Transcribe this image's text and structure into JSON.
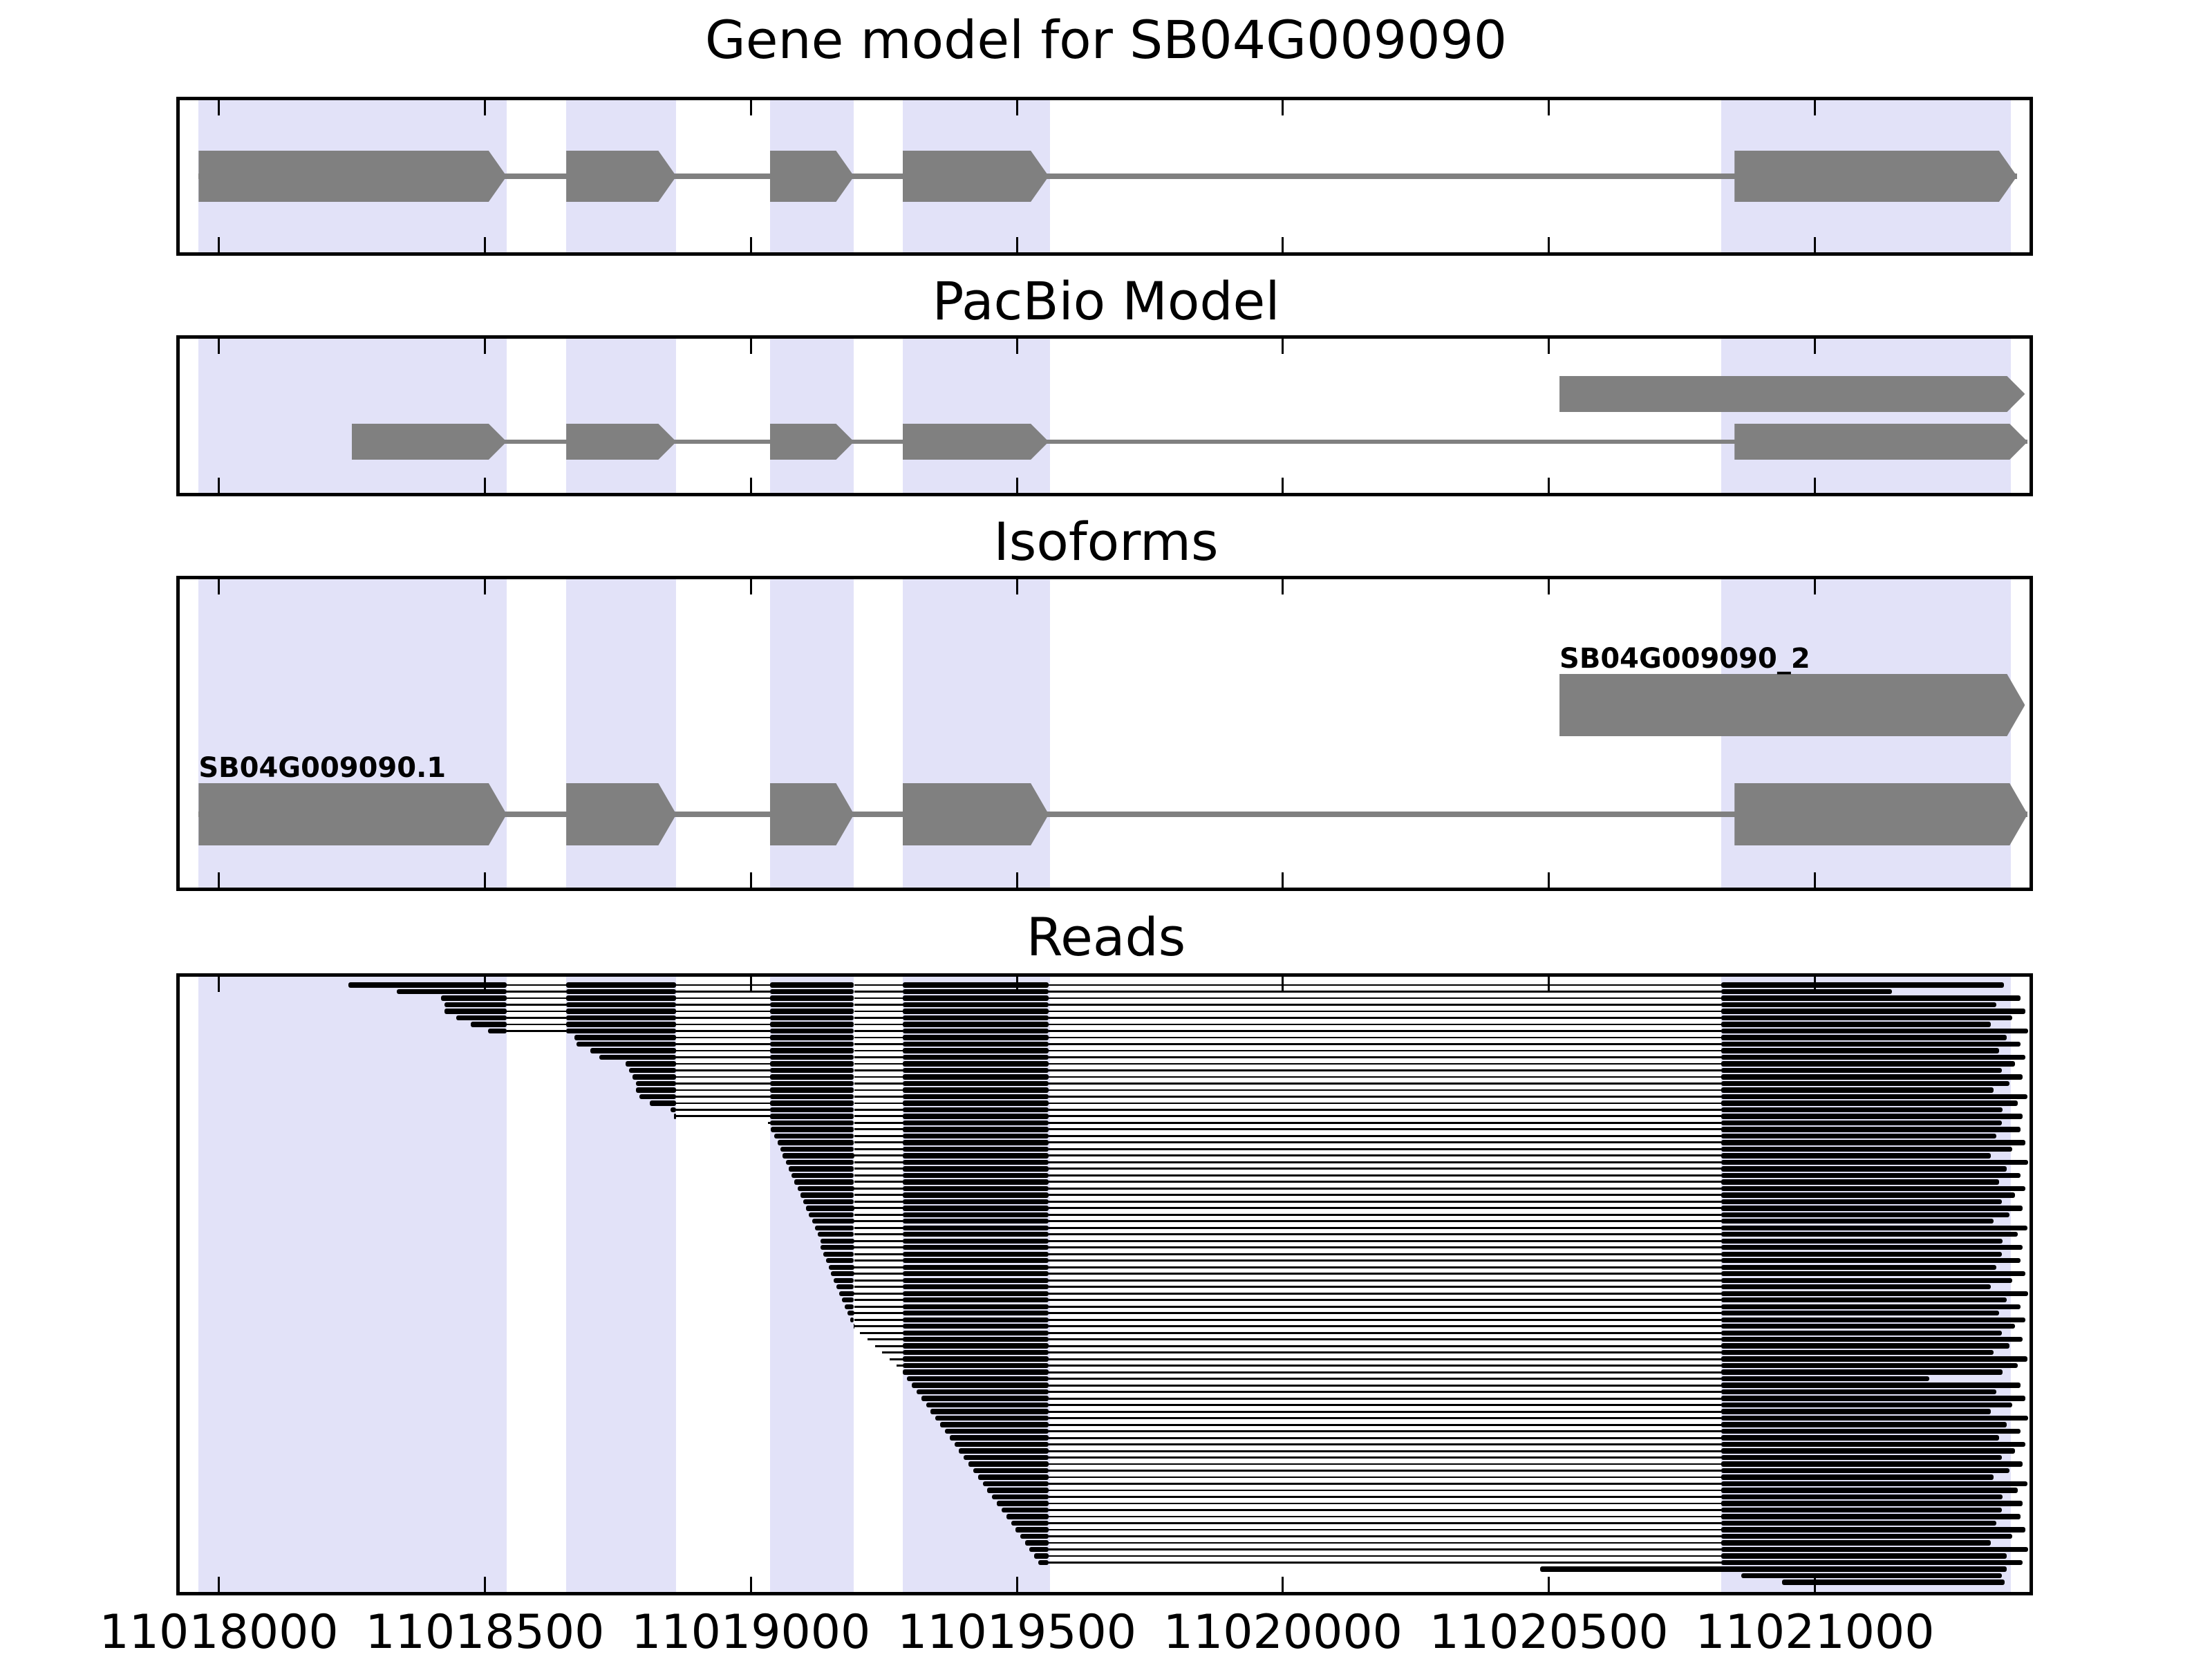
{
  "figure": {
    "kind": "genome-tracks-plot"
  },
  "panels": [
    {
      "id": "gene_model",
      "title": "Gene model for SB04G009090"
    },
    {
      "id": "pacbio",
      "title": "PacBio Model"
    },
    {
      "id": "isoforms",
      "title": "Isoforms"
    },
    {
      "id": "reads",
      "title": "Reads"
    }
  ],
  "colors": {
    "highlight_band": "#e2e2f8",
    "feature_gray": "#808080",
    "read_black": "#000000",
    "border": "#000000",
    "background": "#ffffff"
  },
  "chart_data": {
    "type": "bar",
    "title": "Gene model for SB04G009090",
    "subtitles": [
      "PacBio Model",
      "Isoforms",
      "Reads"
    ],
    "xlabel": "",
    "ylabel": "",
    "x_axis": {
      "min": 11017920,
      "max": 11021410,
      "tick_values": [
        11018000,
        11018500,
        11019000,
        11019500,
        11020000,
        11020500,
        11021000
      ],
      "tick_labels": [
        "11018000",
        "11018500",
        "11019000",
        "11019500",
        "11020000",
        "11020500",
        "11021000"
      ]
    },
    "highlight_regions": [
      [
        11017962,
        11018541
      ],
      [
        11018653,
        11018860
      ],
      [
        11019036,
        11019194
      ],
      [
        11019285,
        11019563
      ],
      [
        11020824,
        11021368
      ]
    ],
    "tracks": {
      "gene_model": {
        "transcripts": [
          {
            "label": "",
            "strand": "+",
            "exons": [
              [
                11017962,
                11018541
              ],
              [
                11018653,
                11018860
              ],
              [
                11019036,
                11019194
              ],
              [
                11019285,
                11019560
              ],
              [
                11020849,
                11021380
              ]
            ]
          }
        ]
      },
      "pacbio": {
        "transcripts": [
          {
            "label": "",
            "strand": "+",
            "exons": [
              [
                11020520,
                11021395
              ]
            ]
          },
          {
            "label": "",
            "strand": "+",
            "exons": [
              [
                11018250,
                11018541
              ],
              [
                11018653,
                11018860
              ],
              [
                11019036,
                11019194
              ],
              [
                11019285,
                11019560
              ],
              [
                11020849,
                11021400
              ]
            ]
          }
        ]
      },
      "isoforms": {
        "transcripts": [
          {
            "label": "SB04G009090_2",
            "strand": "+",
            "exons": [
              [
                11020520,
                11021395
              ]
            ]
          },
          {
            "label": "SB04G009090.1",
            "strand": "+",
            "exons": [
              [
                11017962,
                11018541
              ],
              [
                11018653,
                11018860
              ],
              [
                11019036,
                11019194
              ],
              [
                11019285,
                11019560
              ],
              [
                11020849,
                11021400
              ]
            ]
          }
        ]
      },
      "reads": {
        "exon_windows": [
          [
            11017962,
            11018541
          ],
          [
            11018653,
            11018860
          ],
          [
            11019036,
            11019194
          ],
          [
            11019285,
            11019560
          ],
          [
            11020824,
            11021410
          ]
        ],
        "items": [
          [
            11018244,
            11021355
          ],
          [
            11018335,
            11021145
          ],
          [
            11018418,
            11021386
          ],
          [
            11018424,
            11021341
          ],
          [
            11018424,
            11021396
          ],
          [
            11018446,
            11021371
          ],
          [
            11018474,
            11021331
          ],
          [
            11018506,
            11021401
          ],
          [
            11018668,
            11021361
          ],
          [
            11018672,
            11021386
          ],
          [
            11018698,
            11021346
          ],
          [
            11018715,
            11021396
          ],
          [
            11018764,
            11021376
          ],
          [
            11018771,
            11021351
          ],
          [
            11018777,
            11021391
          ],
          [
            11018784,
            11021366
          ],
          [
            11018784,
            11021336
          ],
          [
            11018791,
            11021399
          ],
          [
            11018810,
            11021381
          ],
          [
            11018849,
            11021353
          ],
          [
            11018855,
            11021390
          ],
          [
            11019032,
            11021352
          ],
          [
            11019038,
            11021386
          ],
          [
            11019044,
            11021341
          ],
          [
            11019050,
            11021396
          ],
          [
            11019055,
            11021371
          ],
          [
            11019060,
            11021331
          ],
          [
            11019066,
            11021401
          ],
          [
            11019071,
            11021361
          ],
          [
            11019077,
            11021386
          ],
          [
            11019082,
            11021346
          ],
          [
            11019088,
            11021396
          ],
          [
            11019093,
            11021376
          ],
          [
            11019098,
            11021351
          ],
          [
            11019104,
            11021391
          ],
          [
            11019109,
            11021366
          ],
          [
            11019115,
            11021336
          ],
          [
            11019120,
            11021399
          ],
          [
            11019126,
            11021381
          ],
          [
            11019131,
            11021353
          ],
          [
            11019131,
            11021390
          ],
          [
            11019136,
            11021352
          ],
          [
            11019141,
            11021386
          ],
          [
            11019146,
            11021341
          ],
          [
            11019151,
            11021396
          ],
          [
            11019156,
            11021371
          ],
          [
            11019161,
            11021331
          ],
          [
            11019166,
            11021401
          ],
          [
            11019171,
            11021361
          ],
          [
            11019176,
            11021386
          ],
          [
            11019181,
            11021346
          ],
          [
            11019187,
            11021396
          ],
          [
            11019193,
            11021376
          ],
          [
            11019205,
            11021351
          ],
          [
            11019219,
            11021391
          ],
          [
            11019233,
            11021366
          ],
          [
            11019247,
            11021336
          ],
          [
            11019261,
            11021399
          ],
          [
            11019274,
            11021381
          ],
          [
            11019285,
            11021353
          ],
          [
            11019294,
            11021215
          ],
          [
            11019303,
            11021386
          ],
          [
            11019312,
            11021341
          ],
          [
            11019321,
            11021396
          ],
          [
            11019330,
            11021371
          ],
          [
            11019338,
            11021331
          ],
          [
            11019347,
            11021401
          ],
          [
            11019356,
            11021361
          ],
          [
            11019365,
            11021386
          ],
          [
            11019374,
            11021346
          ],
          [
            11019383,
            11021396
          ],
          [
            11019391,
            11021376
          ],
          [
            11019400,
            11021351
          ],
          [
            11019409,
            11021391
          ],
          [
            11019418,
            11021366
          ],
          [
            11019427,
            11021336
          ],
          [
            11019436,
            11021399
          ],
          [
            11019444,
            11021381
          ],
          [
            11019453,
            11021353
          ],
          [
            11019462,
            11021390
          ],
          [
            11019471,
            11021352
          ],
          [
            11019480,
            11021386
          ],
          [
            11019489,
            11021341
          ],
          [
            11019497,
            11021396
          ],
          [
            11019506,
            11021371
          ],
          [
            11019515,
            11021331
          ],
          [
            11019524,
            11021401
          ],
          [
            11019533,
            11021361
          ],
          [
            11019540,
            11021390
          ],
          [
            11020484,
            11021360,
            1
          ],
          [
            11020862,
            11021352
          ],
          [
            11020938,
            11021357
          ]
        ]
      }
    }
  }
}
